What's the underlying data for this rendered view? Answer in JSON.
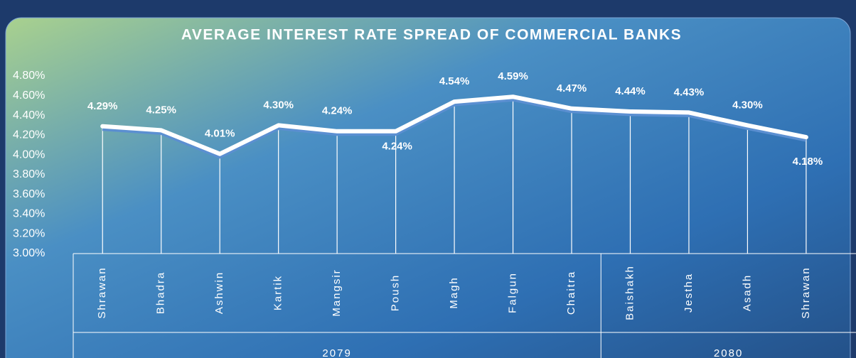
{
  "chart_data": {
    "type": "line",
    "title": "AVERAGE INTEREST RATE SPREAD OF COMMERCIAL BANKS",
    "categories": [
      "Shrawan",
      "Bhadra",
      "Ashwin",
      "Kartik",
      "Mangsir",
      "Poush",
      "Magh",
      "Falgun",
      "Chaitra",
      "Baishakh",
      "Jestha",
      "Asadh",
      "Shrawan"
    ],
    "category_groups": [
      {
        "label": "2079",
        "span": 9
      },
      {
        "label": "2080",
        "span": 4
      }
    ],
    "series": [
      {
        "name": "Average Interest Rate Spread",
        "color": "#ffffff",
        "values": [
          4.29,
          4.25,
          4.01,
          4.3,
          4.24,
          4.24,
          4.54,
          4.59,
          4.47,
          4.44,
          4.43,
          4.3,
          4.18
        ],
        "value_labels": [
          "4.29%",
          "4.25%",
          "4.01%",
          "4.30%",
          "4.24%",
          "4.24%",
          "4.54%",
          "4.59%",
          "4.47%",
          "4.44%",
          "4.43%",
          "4.30%",
          "4.18%"
        ]
      }
    ],
    "ylim": [
      3.0,
      4.8
    ],
    "yticks": [
      {
        "value": 3.0,
        "label": "3.00%"
      },
      {
        "value": 3.2,
        "label": "3.20%"
      },
      {
        "value": 3.4,
        "label": "3.40%"
      },
      {
        "value": 3.6,
        "label": "3.60%"
      },
      {
        "value": 3.8,
        "label": "3.80%"
      },
      {
        "value": 4.0,
        "label": "4.00%"
      },
      {
        "value": 4.2,
        "label": "4.20%"
      },
      {
        "value": 4.4,
        "label": "4.40%"
      },
      {
        "value": 4.6,
        "label": "4.60%"
      },
      {
        "value": 4.8,
        "label": "4.80%"
      }
    ],
    "drop_lines": true
  }
}
